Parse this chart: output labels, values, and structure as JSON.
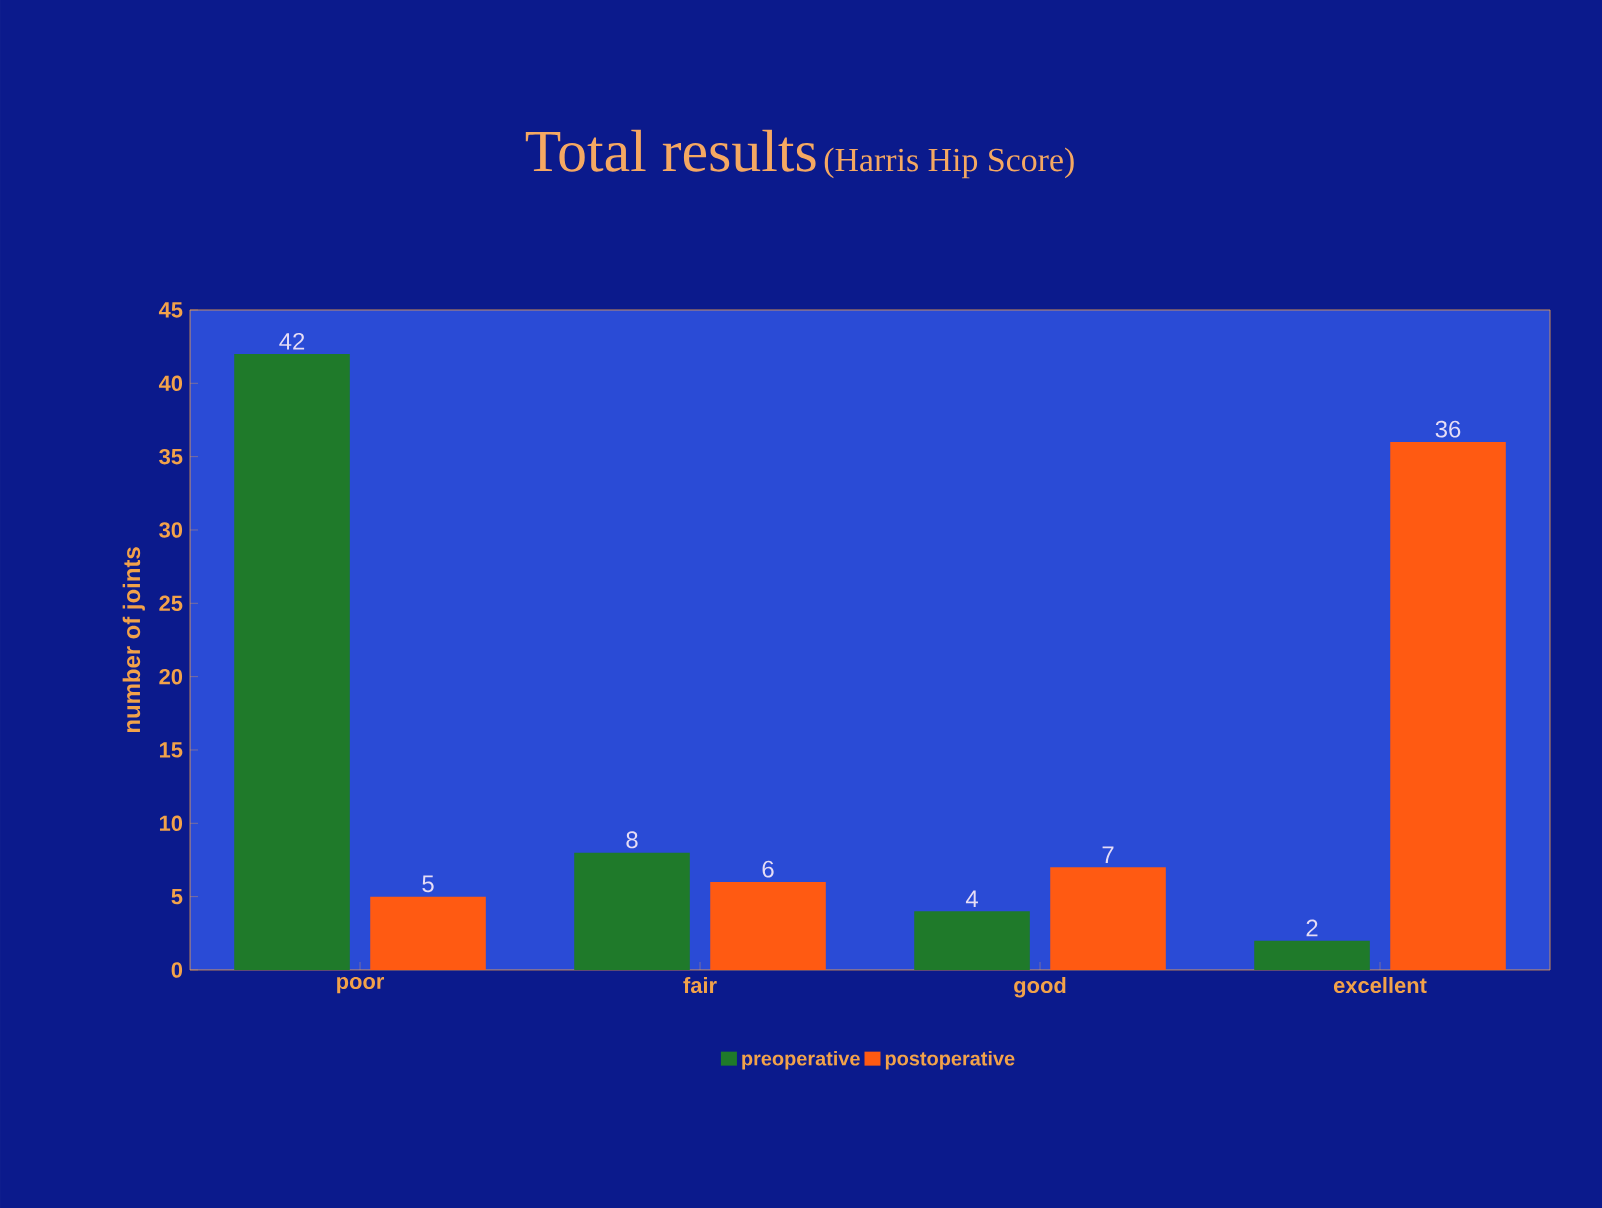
{
  "chart_data": {
    "type": "bar",
    "title": "Total results",
    "subtitle": "(Harris Hip Score)",
    "ylabel": "number of joints",
    "categories": [
      "poor",
      "fair",
      "good",
      "excellent"
    ],
    "series": [
      {
        "name": "preoperative",
        "color": "#1f7a2a",
        "values": [
          42,
          8,
          4,
          2
        ]
      },
      {
        "name": "postoperative",
        "color": "#ff5a12",
        "values": [
          5,
          6,
          7,
          36
        ]
      }
    ],
    "ylim": [
      0,
      45
    ],
    "yticks": [
      0,
      5,
      10,
      15,
      20,
      25,
      30,
      35,
      40,
      45
    ],
    "data_labels": true,
    "grid": false,
    "legend": "bottom"
  }
}
